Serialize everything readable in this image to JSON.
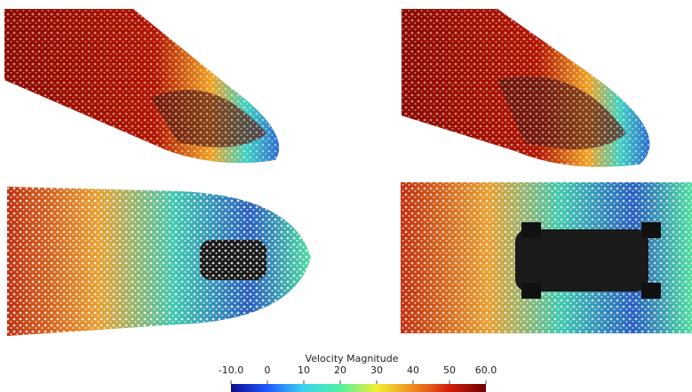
{
  "colorbar": {
    "title": "Velocity Magnitude",
    "lim": [
      -10,
      60
    ],
    "ticks": [
      {
        "value": -10,
        "label": "-10.0"
      },
      0,
      10,
      20,
      30,
      40,
      50,
      {
        "value": 60,
        "label": "60.0"
      }
    ],
    "colors": [
      "#0a0a8c",
      "#1e5aff",
      "#3cd2f0",
      "#50f0a0",
      "#f0f032",
      "#f08c1e",
      "#d21e0a",
      "#6e0000"
    ]
  }
}
